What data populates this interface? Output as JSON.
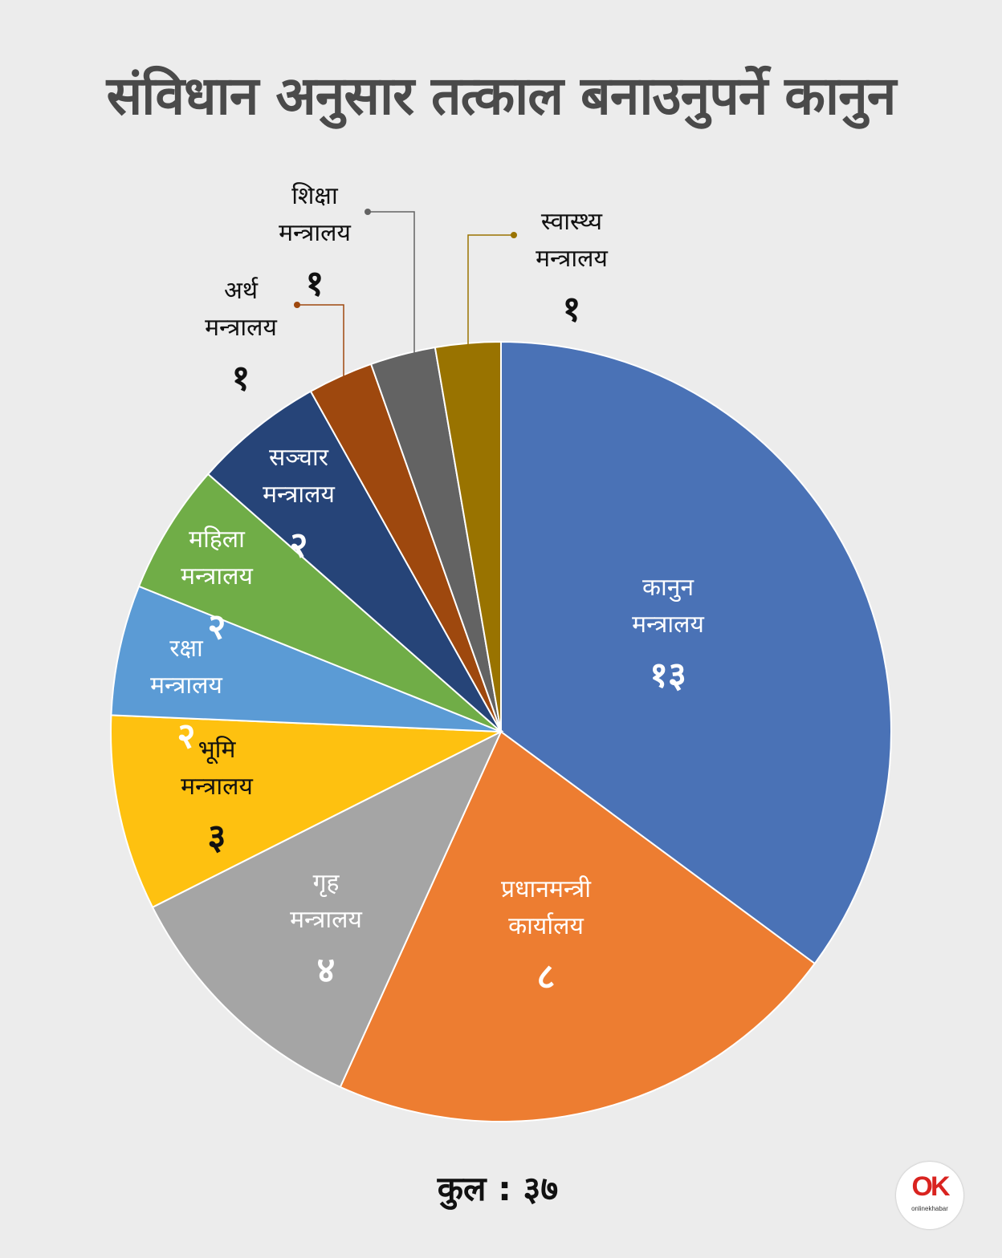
{
  "title": "संविधान अनुसार तत्काल बनाउनुपर्ने कानुन",
  "total_label": "कुल : ३७",
  "logo": {
    "mark": "OK",
    "text": "onlinekhabar"
  },
  "chart_data": {
    "type": "pie",
    "start": "12 o'clock, clockwise",
    "slices": [
      {
        "name_lines": [
          "कानुन",
          "मन्त्रालय"
        ],
        "value": 13,
        "value_label": "१३",
        "color": "#4a72b6",
        "text_color": "#ffffff"
      },
      {
        "name_lines": [
          "प्रधानमन्त्री",
          "कार्यालय"
        ],
        "value": 8,
        "value_label": "८",
        "color": "#ed7d31",
        "text_color": "#ffffff"
      },
      {
        "name_lines": [
          "गृह",
          "मन्त्रालय"
        ],
        "value": 4,
        "value_label": "४",
        "color": "#a5a5a5",
        "text_color": "#ffffff"
      },
      {
        "name_lines": [
          "भूमि",
          "मन्त्रालय"
        ],
        "value": 3,
        "value_label": "३",
        "color": "#fec110",
        "text_color": "#111111"
      },
      {
        "name_lines": [
          "रक्षा",
          "मन्त्रालय"
        ],
        "value": 2,
        "value_label": "२",
        "color": "#5b9bd5",
        "text_color": "#ffffff"
      },
      {
        "name_lines": [
          "महिला",
          "मन्त्रालय"
        ],
        "value": 2,
        "value_label": "२",
        "color": "#70ad47",
        "text_color": "#ffffff"
      },
      {
        "name_lines": [
          "सञ्चार",
          "मन्त्रालय"
        ],
        "value": 2,
        "value_label": "२",
        "color": "#264478",
        "text_color": "#ffffff"
      },
      {
        "name_lines": [
          "अर्थ",
          "मन्त्रालय"
        ],
        "value": 1,
        "value_label": "१",
        "color": "#9e480e",
        "text_color": "#111111",
        "outside": true
      },
      {
        "name_lines": [
          "शिक्षा",
          "मन्त्रालय"
        ],
        "value": 1,
        "value_label": "१",
        "color": "#636363",
        "text_color": "#111111",
        "outside": true
      },
      {
        "name_lines": [
          "स्वास्थ्य",
          "मन्त्रालय"
        ],
        "value": 1,
        "value_label": "१",
        "color": "#997300",
        "text_color": "#111111",
        "outside": true
      }
    ],
    "total": 37
  }
}
